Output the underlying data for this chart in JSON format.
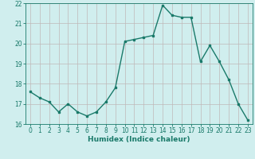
{
  "x": [
    0,
    1,
    2,
    3,
    4,
    5,
    6,
    7,
    8,
    9,
    10,
    11,
    12,
    13,
    14,
    15,
    16,
    17,
    18,
    19,
    20,
    21,
    22,
    23
  ],
  "y": [
    17.6,
    17.3,
    17.1,
    16.6,
    17.0,
    16.6,
    16.4,
    16.6,
    17.1,
    17.8,
    20.1,
    20.2,
    20.3,
    20.4,
    21.9,
    21.4,
    21.3,
    21.3,
    19.1,
    19.9,
    19.1,
    18.2,
    17.0,
    16.2
  ],
  "line_color": "#1a7a6a",
  "bg_color": "#d0eeee",
  "grid_color": "#c0b8b8",
  "xlabel": "Humidex (Indice chaleur)",
  "ylim": [
    16,
    22
  ],
  "xlim": [
    -0.5,
    23.5
  ],
  "yticks": [
    16,
    17,
    18,
    19,
    20,
    21,
    22
  ],
  "xticks": [
    0,
    1,
    2,
    3,
    4,
    5,
    6,
    7,
    8,
    9,
    10,
    11,
    12,
    13,
    14,
    15,
    16,
    17,
    18,
    19,
    20,
    21,
    22,
    23
  ],
  "marker": "s",
  "markersize": 2.0,
  "linewidth": 1.0,
  "xlabel_fontsize": 6.5,
  "tick_fontsize": 5.5
}
